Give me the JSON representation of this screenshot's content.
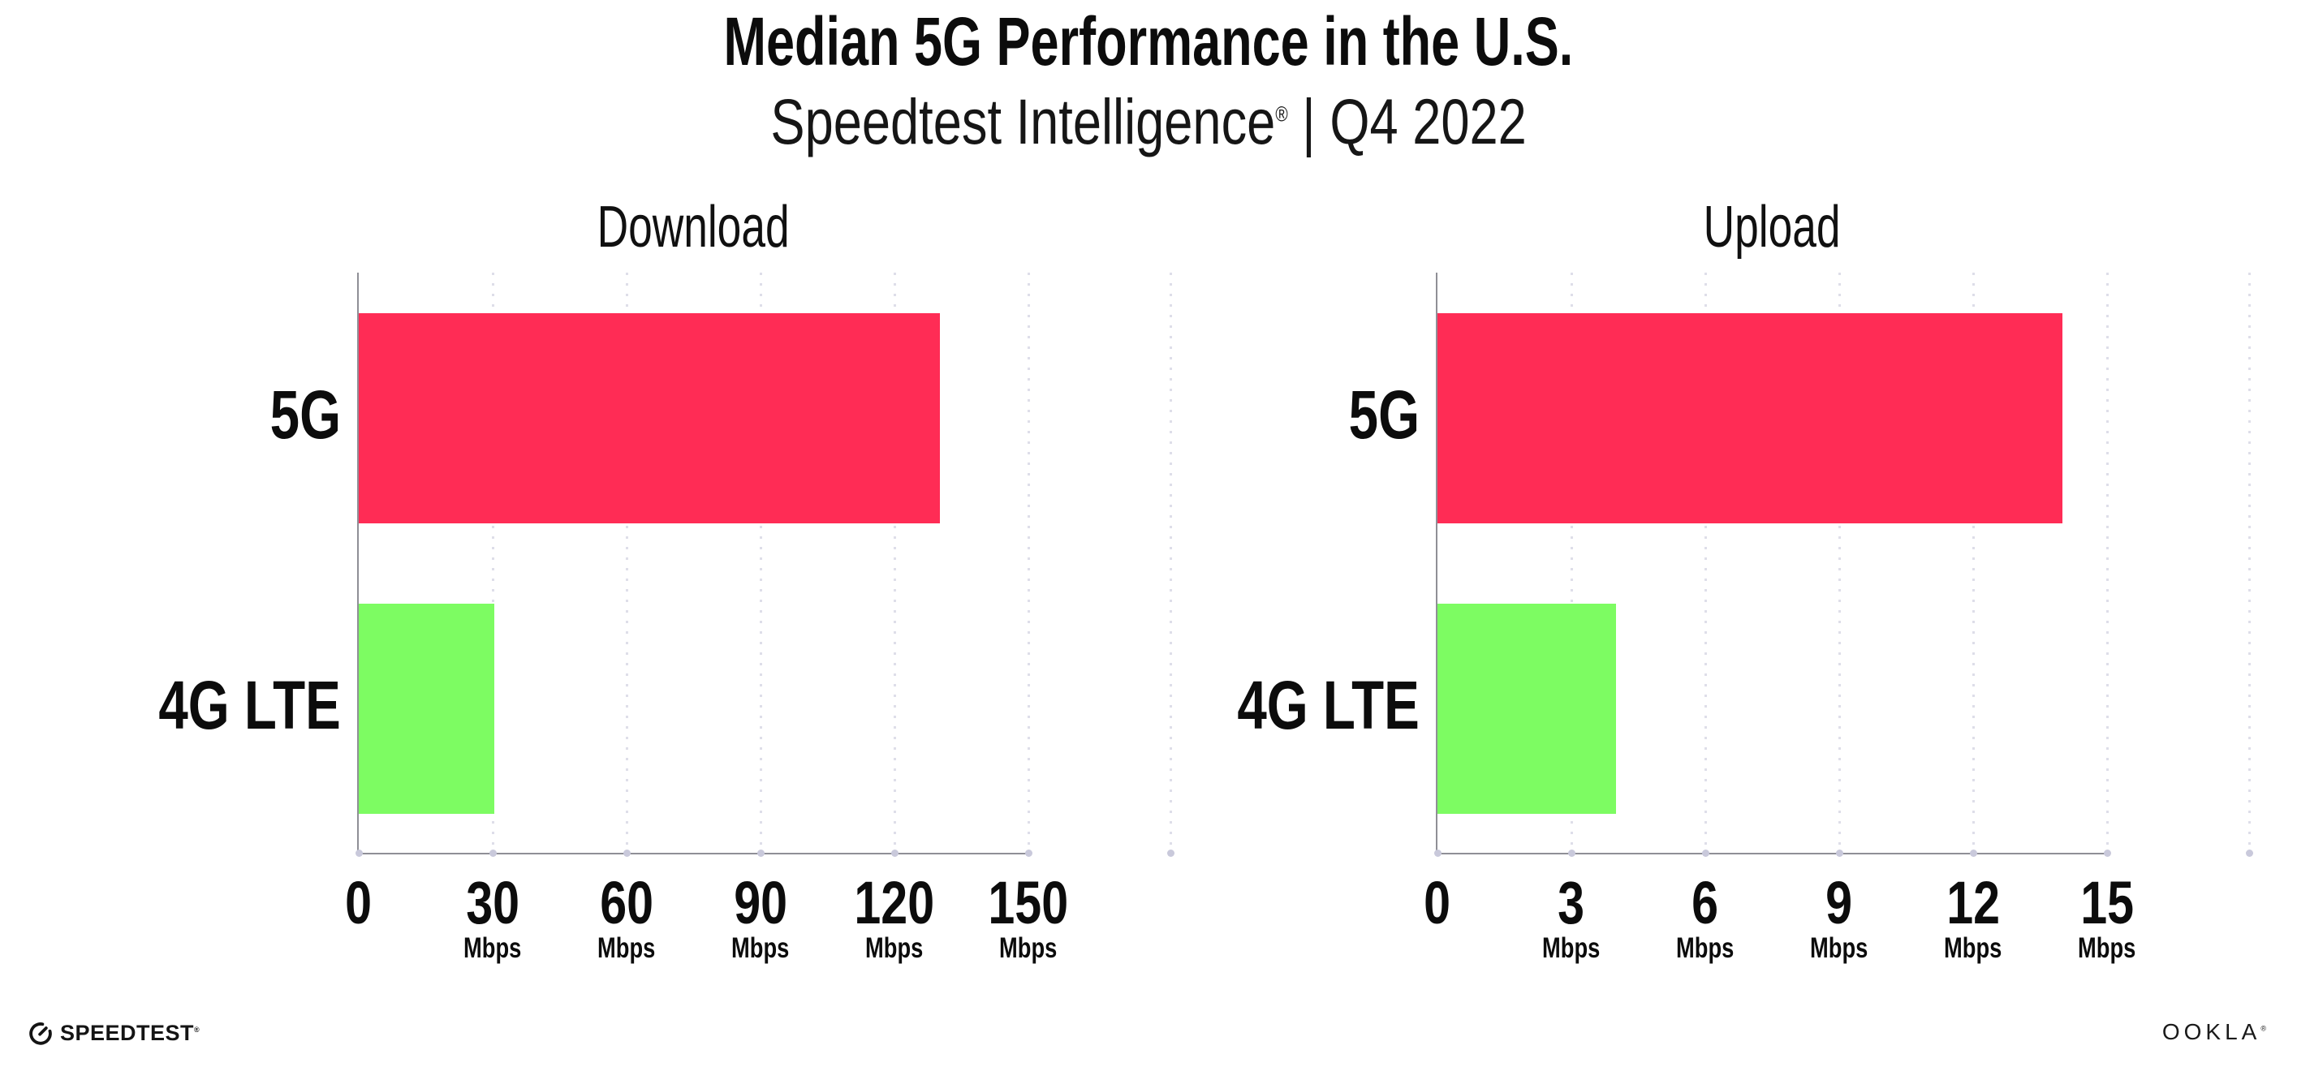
{
  "header": {
    "title": "Median 5G Performance in the U.S.",
    "subtitle": {
      "brand": "Speedtest Intelligence",
      "registered_mark": "®",
      "separator": "|",
      "period": "Q4 2022"
    }
  },
  "chart_data": [
    {
      "type": "bar",
      "orientation": "horizontal",
      "title": "Download",
      "categories": [
        "5G",
        "4G LTE"
      ],
      "values": [
        130.2,
        30.4
      ],
      "unit": "Mbps",
      "xlim": [
        0,
        150
      ],
      "xticks": [
        0,
        30,
        60,
        90,
        120,
        150
      ],
      "xtick_unit": "Mbps",
      "bar_colors": [
        "#ff2c55",
        "#7dfc62"
      ],
      "grid": "dotted-vertical",
      "legend": "none"
    },
    {
      "type": "bar",
      "orientation": "horizontal",
      "title": "Upload",
      "categories": [
        "5G",
        "4G LTE"
      ],
      "values": [
        14.0,
        4.0
      ],
      "unit": "Mbps",
      "xlim": [
        0,
        15
      ],
      "xticks": [
        0,
        3,
        6,
        9,
        12,
        15
      ],
      "xtick_unit": "Mbps",
      "bar_colors": [
        "#ff2c55",
        "#7dfc62"
      ],
      "grid": "dotted-vertical",
      "legend": "none"
    }
  ],
  "colors": {
    "bar_5g": "#ff2c55",
    "bar_4g_lte": "#7dfc62",
    "gridline": "#dedee9",
    "axis_line": "#8f8f96",
    "axis_dot": "#c9c9db",
    "text": "#0c0c0c"
  },
  "footer": {
    "speedtest_label": "SPEEDTEST",
    "speedtest_mark": "®",
    "ookla_label": "OOKLA",
    "ookla_mark": "®"
  }
}
